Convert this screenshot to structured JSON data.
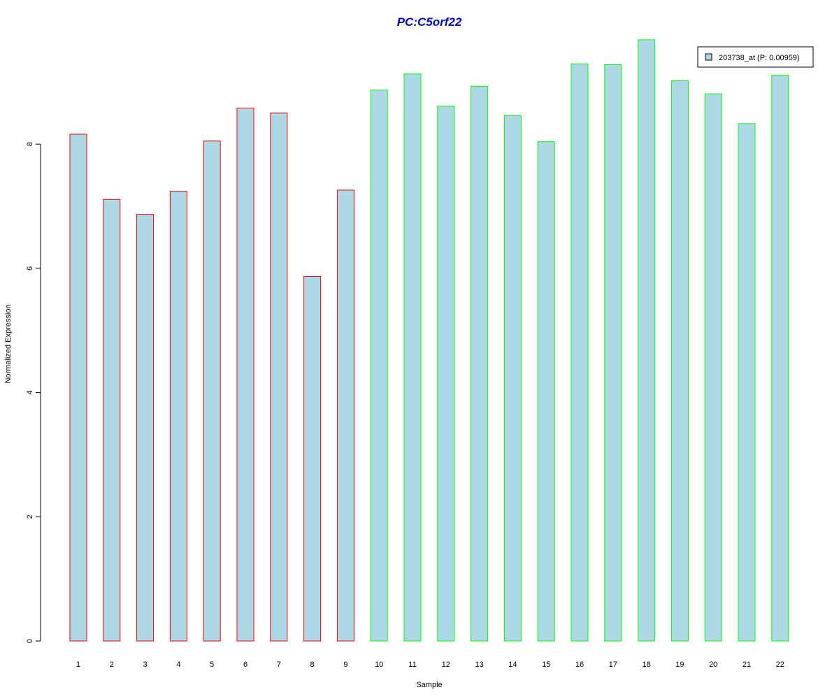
{
  "chart_data": {
    "type": "bar",
    "title": "PC:C5orf22",
    "xlabel": "Sample",
    "ylabel": "Normalized Expression",
    "ylim": [
      0,
      9.8
    ],
    "yticks": [
      "0",
      "2",
      "4",
      "6",
      "8"
    ],
    "categories": [
      "1",
      "2",
      "3",
      "4",
      "5",
      "6",
      "7",
      "8",
      "9",
      "10",
      "11",
      "12",
      "13",
      "14",
      "15",
      "16",
      "17",
      "18",
      "19",
      "20",
      "21",
      "22"
    ],
    "series": [
      {
        "name": "203738_at (P: 0.00959)",
        "values": [
          8.16,
          7.11,
          6.87,
          7.24,
          8.05,
          8.58,
          8.5,
          5.87,
          7.26,
          8.87,
          9.13,
          8.61,
          8.93,
          8.46,
          8.04,
          9.29,
          9.28,
          9.68,
          9.02,
          8.81,
          8.33,
          9.11
        ]
      }
    ],
    "groups": [
      0,
      0,
      0,
      0,
      0,
      0,
      0,
      0,
      0,
      1,
      1,
      1,
      1,
      1,
      1,
      1,
      1,
      1,
      1,
      1,
      1,
      1
    ],
    "colors": {
      "fill": "#ADD8E6",
      "group_borders": [
        "#FF0000",
        "#00FF00"
      ],
      "title": "#0000CC",
      "axis": "#000000"
    },
    "legend": {
      "label": "203738_at (P: 0.00959)",
      "position": "top-right"
    },
    "grid": false
  }
}
